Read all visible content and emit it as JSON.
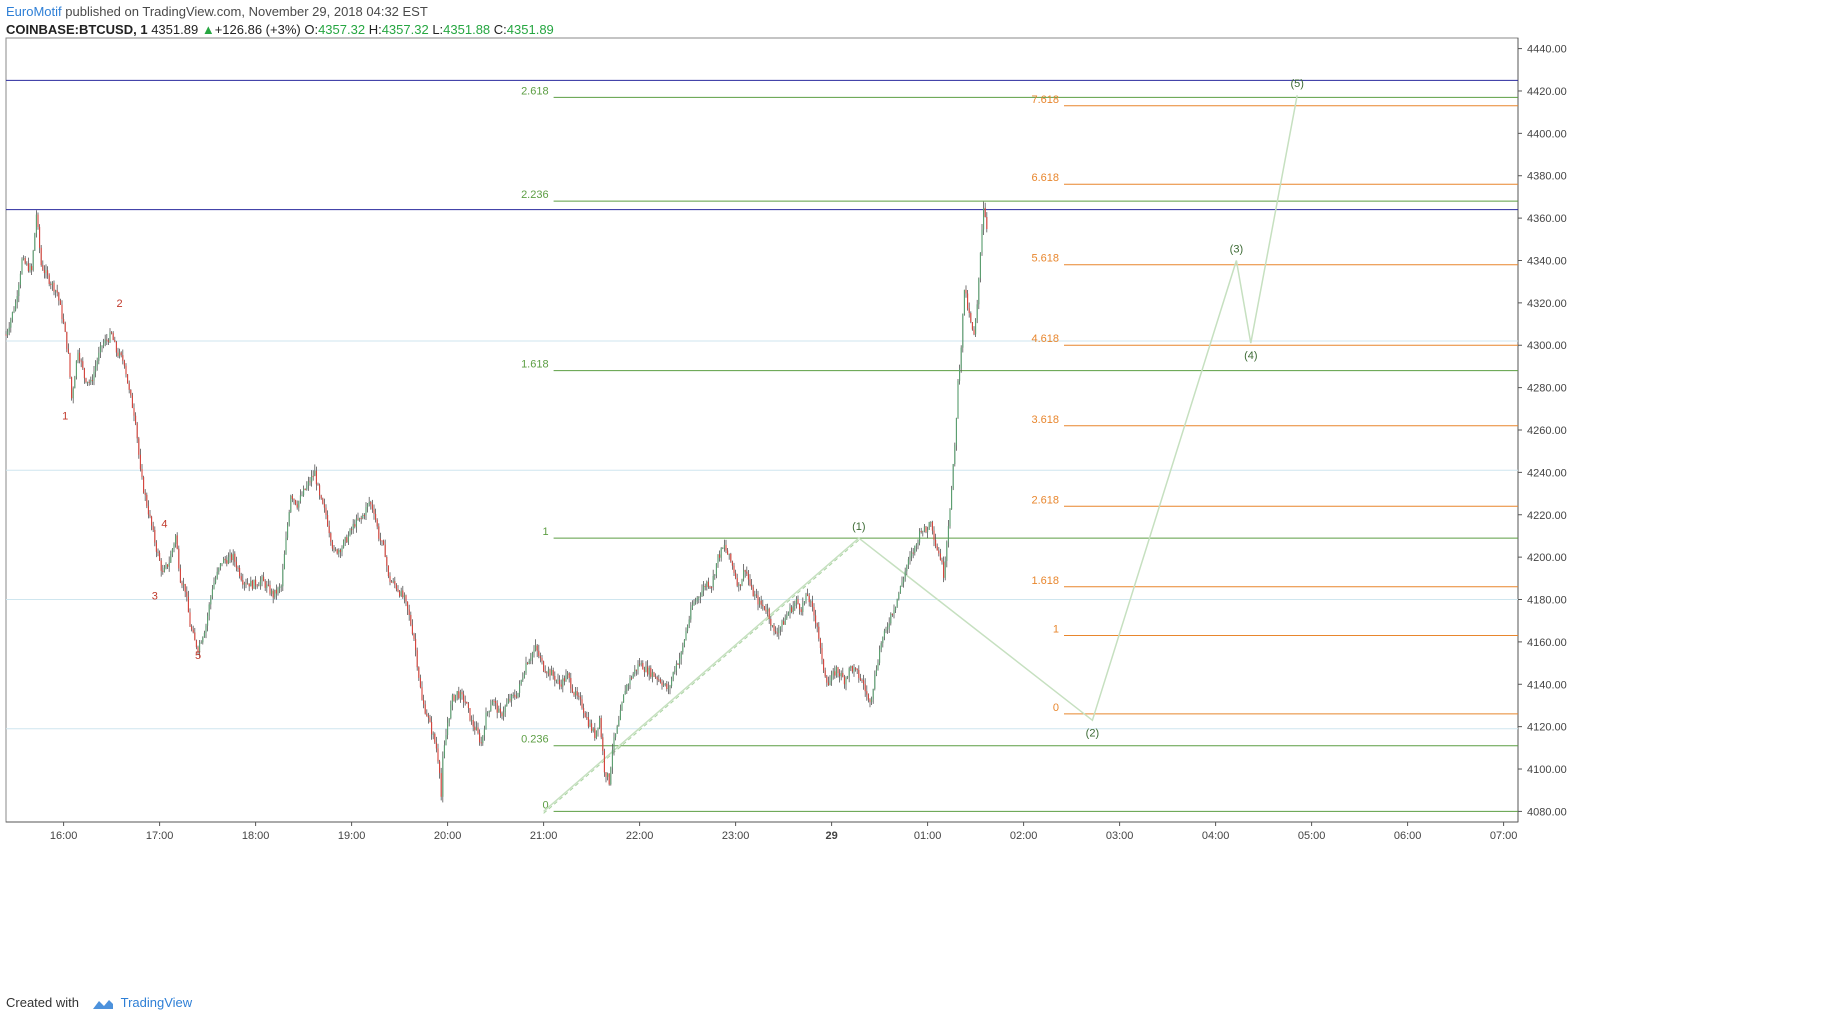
{
  "header": {
    "publisher": "EuroMotif",
    "published_text": " published on TradingView.com, November 29, 2018 04:32 EST",
    "symbol": "COINBASE:BTCUSD, 1",
    "last": "4351.89",
    "change": "+126.86 (+3%)",
    "o_label": "O:",
    "o_value": "4357.32",
    "h_label": "H:",
    "h_value": "4357.32",
    "l_label": "L:",
    "l_value": "4351.88",
    "c_label": "C:",
    "c_value": "4351.89"
  },
  "footer": {
    "created_with": "Created with",
    "brand": "TradingView"
  },
  "colors": {
    "up": "#5a9e6f",
    "down": "#d7433b",
    "fib_green": "#5c9e43",
    "fib_orange": "#e8862d",
    "blue_line": "#2a2a9e",
    "light_line": "#cfe6ef",
    "wave_path": "#c6e0c0",
    "red_label": "#c0392b"
  },
  "chart_data": {
    "type": "candlestick",
    "y_axis": {
      "min": 4075,
      "max": 4445,
      "ticks": [
        4080,
        4100,
        4120,
        4140,
        4160,
        4180,
        4200,
        4220,
        4240,
        4260,
        4280,
        4300,
        4320,
        4340,
        4360,
        4380,
        4400,
        4420,
        4440
      ]
    },
    "x_axis": {
      "labels": [
        {
          "text": "16:00",
          "t": 0
        },
        {
          "text": "17:00",
          "t": 60
        },
        {
          "text": "18:00",
          "t": 120
        },
        {
          "text": "19:00",
          "t": 180
        },
        {
          "text": "20:00",
          "t": 240
        },
        {
          "text": "21:00",
          "t": 300
        },
        {
          "text": "22:00",
          "t": 360
        },
        {
          "text": "23:00",
          "t": 420
        },
        {
          "text": "29",
          "t": 480,
          "bold": true
        },
        {
          "text": "01:00",
          "t": 540
        },
        {
          "text": "02:00",
          "t": 600
        },
        {
          "text": "03:00",
          "t": 660
        },
        {
          "text": "04:00",
          "t": 720
        },
        {
          "text": "05:00",
          "t": 780
        },
        {
          "text": "06:00",
          "t": 840
        },
        {
          "text": "07:00",
          "t": 900
        }
      ],
      "t_min": -36,
      "t_max": 909
    },
    "price_anchors": [
      [
        -36,
        4305
      ],
      [
        -30,
        4320
      ],
      [
        -26,
        4340
      ],
      [
        -20,
        4335
      ],
      [
        -17,
        4362
      ],
      [
        -14,
        4338
      ],
      [
        -10,
        4332
      ],
      [
        -4,
        4325
      ],
      [
        0,
        4310
      ],
      [
        3,
        4295
      ],
      [
        5,
        4275
      ],
      [
        9,
        4298
      ],
      [
        13,
        4285
      ],
      [
        17,
        4282
      ],
      [
        21,
        4293
      ],
      [
        24,
        4300
      ],
      [
        30,
        4305
      ],
      [
        33,
        4297
      ],
      [
        38,
        4292
      ],
      [
        41,
        4278
      ],
      [
        45,
        4265
      ],
      [
        48,
        4240
      ],
      [
        50,
        4232
      ],
      [
        54,
        4218
      ],
      [
        58,
        4204
      ],
      [
        62,
        4192
      ],
      [
        66,
        4198
      ],
      [
        70,
        4210
      ],
      [
        73,
        4190
      ],
      [
        76,
        4185
      ],
      [
        79,
        4168
      ],
      [
        82,
        4160
      ],
      [
        84,
        4157
      ],
      [
        89,
        4168
      ],
      [
        93,
        4186
      ],
      [
        99,
        4198
      ],
      [
        106,
        4200
      ],
      [
        112,
        4189
      ],
      [
        118,
        4187
      ],
      [
        124,
        4189
      ],
      [
        131,
        4182
      ],
      [
        136,
        4186
      ],
      [
        139,
        4208
      ],
      [
        142,
        4230
      ],
      [
        146,
        4225
      ],
      [
        151,
        4232
      ],
      [
        157,
        4240
      ],
      [
        160,
        4228
      ],
      [
        164,
        4220
      ],
      [
        169,
        4202
      ],
      [
        174,
        4205
      ],
      [
        178,
        4210
      ],
      [
        182,
        4216
      ],
      [
        186,
        4218
      ],
      [
        191,
        4226
      ],
      [
        194,
        4222
      ],
      [
        197,
        4210
      ],
      [
        201,
        4202
      ],
      [
        203,
        4190
      ],
      [
        208,
        4186
      ],
      [
        213,
        4180
      ],
      [
        216,
        4172
      ],
      [
        219,
        4162
      ],
      [
        221,
        4150
      ],
      [
        224,
        4132
      ],
      [
        227,
        4126
      ],
      [
        230,
        4118
      ],
      [
        233,
        4110
      ],
      [
        235,
        4100
      ],
      [
        236,
        4087
      ],
      [
        237,
        4104
      ],
      [
        240,
        4122
      ],
      [
        243,
        4133
      ],
      [
        246,
        4136
      ],
      [
        251,
        4132
      ],
      [
        255,
        4122
      ],
      [
        258,
        4118
      ],
      [
        261,
        4112
      ],
      [
        264,
        4125
      ],
      [
        268,
        4133
      ],
      [
        273,
        4125
      ],
      [
        278,
        4132
      ],
      [
        284,
        4136
      ],
      [
        289,
        4150
      ],
      [
        295,
        4157
      ],
      [
        300,
        4148
      ],
      [
        305,
        4145
      ],
      [
        310,
        4140
      ],
      [
        315,
        4144
      ],
      [
        319,
        4136
      ],
      [
        324,
        4130
      ],
      [
        328,
        4122
      ],
      [
        332,
        4116
      ],
      [
        335,
        4124
      ],
      [
        338,
        4100
      ],
      [
        341,
        4094
      ],
      [
        343,
        4110
      ],
      [
        347,
        4122
      ],
      [
        351,
        4138
      ],
      [
        356,
        4145
      ],
      [
        360,
        4150
      ],
      [
        364,
        4147
      ],
      [
        368,
        4145
      ],
      [
        373,
        4142
      ],
      [
        378,
        4137
      ],
      [
        382,
        4148
      ],
      [
        386,
        4154
      ],
      [
        389,
        4165
      ],
      [
        393,
        4177
      ],
      [
        397,
        4182
      ],
      [
        402,
        4188
      ],
      [
        405,
        4187
      ],
      [
        409,
        4200
      ],
      [
        413,
        4205
      ],
      [
        418,
        4196
      ],
      [
        422,
        4186
      ],
      [
        426,
        4195
      ],
      [
        430,
        4184
      ],
      [
        435,
        4178
      ],
      [
        440,
        4175
      ],
      [
        444,
        4164
      ],
      [
        449,
        4168
      ],
      [
        453,
        4174
      ],
      [
        458,
        4179
      ],
      [
        461,
        4176
      ],
      [
        465,
        4182
      ],
      [
        468,
        4175
      ],
      [
        471,
        4168
      ],
      [
        474,
        4150
      ],
      [
        478,
        4140
      ],
      [
        483,
        4147
      ],
      [
        488,
        4142
      ],
      [
        492,
        4148
      ],
      [
        496,
        4145
      ],
      [
        500,
        4140
      ],
      [
        503,
        4132
      ],
      [
        505,
        4135
      ],
      [
        508,
        4148
      ],
      [
        511,
        4160
      ],
      [
        514,
        4165
      ],
      [
        517,
        4173
      ],
      [
        520,
        4178
      ],
      [
        524,
        4188
      ],
      [
        527,
        4196
      ],
      [
        530,
        4201
      ],
      [
        533,
        4206
      ],
      [
        536,
        4214
      ],
      [
        539,
        4212
      ],
      [
        542,
        4218
      ],
      [
        545,
        4206
      ],
      [
        548,
        4200
      ],
      [
        550,
        4192
      ],
      [
        552,
        4208
      ],
      [
        555,
        4232
      ],
      [
        557,
        4252
      ],
      [
        559,
        4282
      ],
      [
        561,
        4300
      ],
      [
        563,
        4327
      ],
      [
        565,
        4318
      ],
      [
        567,
        4310
      ],
      [
        569,
        4304
      ],
      [
        571,
        4318
      ],
      [
        573,
        4345
      ],
      [
        575,
        4366
      ],
      [
        577,
        4356
      ]
    ],
    "fib_green": {
      "label_t": 305,
      "levels": [
        {
          "label": "0",
          "price": 4080
        },
        {
          "label": "0.236",
          "price": 4111
        },
        {
          "label": "1",
          "price": 4209
        },
        {
          "label": "1.618",
          "price": 4288
        },
        {
          "label": "2.236",
          "price": 4368
        },
        {
          "label": "2.618",
          "price": 4417
        }
      ]
    },
    "fib_orange": {
      "label_t": 624,
      "levels": [
        {
          "label": "0",
          "price": 4126
        },
        {
          "label": "1",
          "price": 4163
        },
        {
          "label": "1.618",
          "price": 4186
        },
        {
          "label": "2.618",
          "price": 4224
        },
        {
          "label": "3.618",
          "price": 4262
        },
        {
          "label": "4.618",
          "price": 4300
        },
        {
          "label": "5.618",
          "price": 4338
        },
        {
          "label": "6.618",
          "price": 4376
        },
        {
          "label": "7.618",
          "price": 4413
        }
      ]
    },
    "horizontal_lines": [
      {
        "price": 4425,
        "style": "blue"
      },
      {
        "price": 4364,
        "style": "blue"
      },
      {
        "price": 4302,
        "style": "light"
      },
      {
        "price": 4241,
        "style": "light"
      },
      {
        "price": 4180,
        "style": "light"
      },
      {
        "price": 4119,
        "style": "light"
      }
    ],
    "elliott_waves": [
      {
        "label": "(1)",
        "t": 497,
        "price": 4209,
        "pos": "above"
      },
      {
        "label": "(2)",
        "t": 643,
        "price": 4123,
        "pos": "below"
      },
      {
        "label": "(3)",
        "t": 733,
        "price": 4340,
        "pos": "above"
      },
      {
        "label": "(4)",
        "t": 742,
        "price": 4301,
        "pos": "below"
      },
      {
        "label": "(5)",
        "t": 771,
        "price": 4418,
        "pos": "above"
      }
    ],
    "wave_path": [
      [
        300,
        4080
      ],
      [
        497,
        4209
      ],
      [
        643,
        4123
      ],
      [
        733,
        4340
      ],
      [
        742,
        4301
      ],
      [
        771,
        4418
      ]
    ],
    "red_labels": [
      {
        "label": "1",
        "t": 1,
        "price": 4265
      },
      {
        "label": "2",
        "t": 35,
        "price": 4318
      },
      {
        "label": "3",
        "t": 57,
        "price": 4180
      },
      {
        "label": "4",
        "t": 63,
        "price": 4214
      },
      {
        "label": "5",
        "t": 84,
        "price": 4152
      }
    ]
  }
}
